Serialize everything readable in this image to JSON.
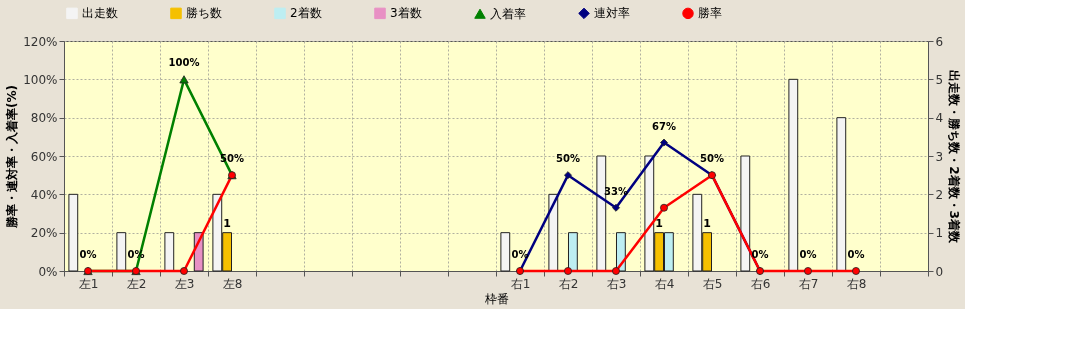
{
  "chart_data": {
    "type": "bar",
    "xlabel": "枠番",
    "ylabel": "勝率・連対率・入着率(%)",
    "y2label": "出走数・勝ち数・2着数・3着数",
    "categories": [
      "左1",
      "左2",
      "左3",
      "左8",
      null,
      null,
      null,
      null,
      null,
      "右1",
      "右2",
      "右3",
      "右4",
      "右5",
      "右6",
      "右7",
      "右8",
      null
    ],
    "series": [
      {
        "name": "出走数",
        "axis": "y2",
        "color": "#f4f4f4",
        "values": [
          2,
          1,
          1,
          2,
          null,
          null,
          null,
          null,
          null,
          1,
          2,
          3,
          3,
          2,
          3,
          5,
          4,
          null
        ]
      },
      {
        "name": "勝ち数",
        "axis": "y2",
        "color": "#f5c000",
        "values": [
          null,
          null,
          null,
          1,
          null,
          null,
          null,
          null,
          null,
          null,
          null,
          null,
          1,
          1,
          null,
          null,
          null,
          null
        ],
        "value_labels": [
          null,
          null,
          null,
          "1",
          null,
          null,
          null,
          null,
          null,
          null,
          null,
          null,
          "1",
          "1",
          null,
          null,
          null,
          null
        ]
      },
      {
        "name": "2着数",
        "axis": "y2",
        "color": "#bdeef2",
        "values": [
          null,
          null,
          null,
          null,
          null,
          null,
          null,
          null,
          null,
          null,
          1,
          1,
          1,
          null,
          null,
          null,
          null,
          null
        ]
      },
      {
        "name": "3着数",
        "axis": "y2",
        "color": "#e890c4",
        "values": [
          null,
          null,
          1,
          null,
          null,
          null,
          null,
          null,
          null,
          null,
          null,
          null,
          null,
          null,
          null,
          null,
          null,
          null
        ]
      },
      {
        "name": "入着率",
        "type": "line",
        "axis": "y",
        "marker": "triangle",
        "color": "#008000",
        "values": [
          0,
          0,
          100,
          50,
          null,
          null,
          null,
          null,
          null,
          null,
          null,
          null,
          null,
          null,
          null,
          null,
          null,
          null
        ],
        "value_labels": [
          "0%",
          "0%",
          "100%",
          "50%",
          null,
          null,
          null,
          null,
          null,
          null,
          null,
          null,
          null,
          null,
          null,
          null,
          null,
          null
        ]
      },
      {
        "name": "連対率",
        "type": "line",
        "axis": "y",
        "marker": "diamond",
        "color": "#000080",
        "values": [
          null,
          null,
          null,
          null,
          null,
          null,
          null,
          null,
          null,
          0,
          50,
          33,
          67,
          50,
          0,
          null,
          null,
          null
        ],
        "value_labels": [
          null,
          null,
          null,
          null,
          null,
          null,
          null,
          null,
          null,
          "0%",
          "50%",
          "33%",
          "67%",
          "50%",
          "0%",
          null,
          null,
          null
        ]
      },
      {
        "name": "勝率",
        "type": "line",
        "axis": "y",
        "marker": "circle",
        "color": "#ff0000",
        "values": [
          0,
          0,
          0,
          50,
          null,
          null,
          null,
          null,
          null,
          0,
          0,
          0,
          33,
          50,
          0,
          0,
          0,
          null
        ],
        "value_labels": [
          null,
          null,
          null,
          null,
          null,
          null,
          null,
          null,
          null,
          null,
          null,
          null,
          null,
          null,
          null,
          "0%",
          "0%",
          null
        ]
      }
    ],
    "ylim": [
      0,
      120
    ],
    "yticks": [
      {
        "value": 0,
        "label": "0%"
      },
      {
        "value": 20,
        "label": "20%"
      },
      {
        "value": 40,
        "label": "40%"
      },
      {
        "value": 60,
        "label": "60%"
      },
      {
        "value": 80,
        "label": "80%"
      },
      {
        "value": 100,
        "label": "100%"
      },
      {
        "value": 120,
        "label": "120%"
      }
    ],
    "y2lim": [
      0,
      6
    ],
    "y2ticks": [
      0,
      1,
      2,
      3,
      4,
      5,
      6
    ],
    "grid": true,
    "legend": "top",
    "line_style": "solid"
  }
}
